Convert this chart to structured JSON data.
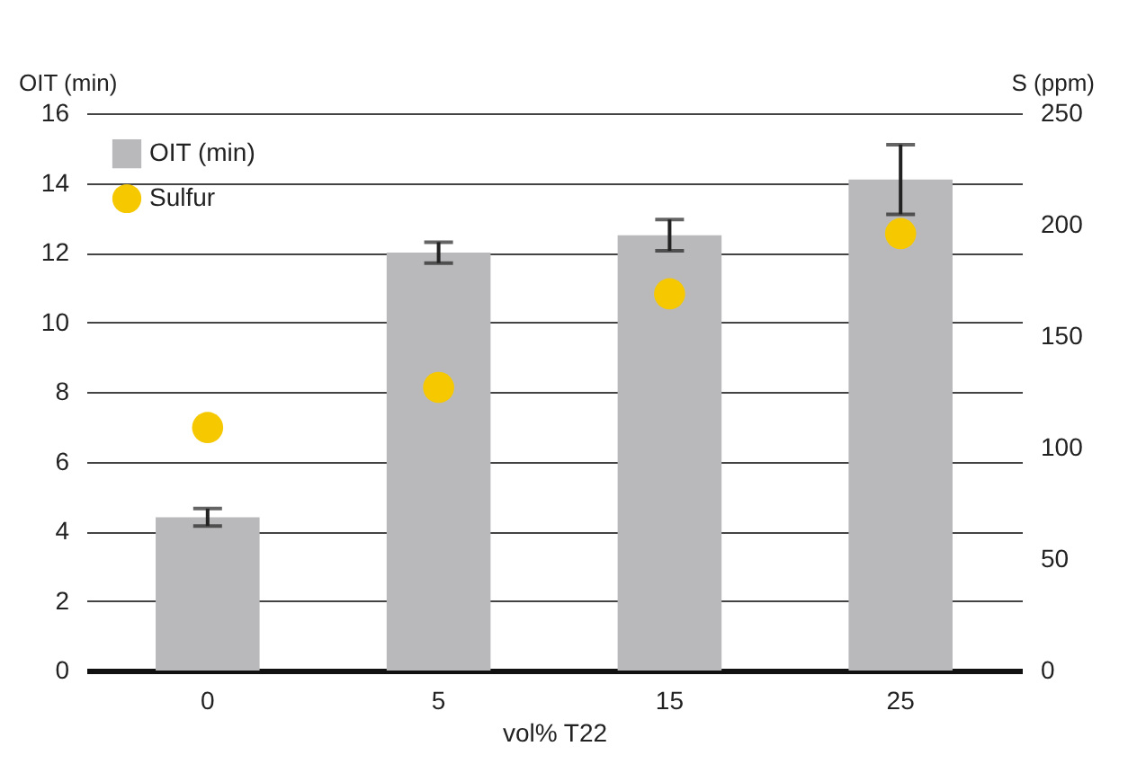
{
  "chart_data": {
    "type": "bar",
    "xlabel": "vol% T22",
    "ylabel": "OIT (min)",
    "y2label": "S (ppm)",
    "categories": [
      "0",
      "5",
      "15",
      "25"
    ],
    "series": [
      {
        "name": "OIT (min)",
        "color": "#b9b9bb",
        "values": [
          4.4,
          12.0,
          12.5,
          14.1
        ],
        "errors": [
          0.25,
          0.3,
          0.45,
          1.0
        ]
      },
      {
        "name": "Sulfur",
        "type": "scatter",
        "axis": "y2",
        "color": "#f5c800",
        "values": [
          109,
          127,
          169,
          196
        ]
      }
    ],
    "ylim": [
      0,
      16
    ],
    "yticks": [
      0,
      2,
      4,
      6,
      8,
      10,
      12,
      14,
      16
    ],
    "y2lim": [
      0,
      250
    ],
    "y2ticks": [
      0,
      50,
      100,
      150,
      200,
      250
    ],
    "grid": "y",
    "legend": "top left",
    "marker": "circle"
  }
}
